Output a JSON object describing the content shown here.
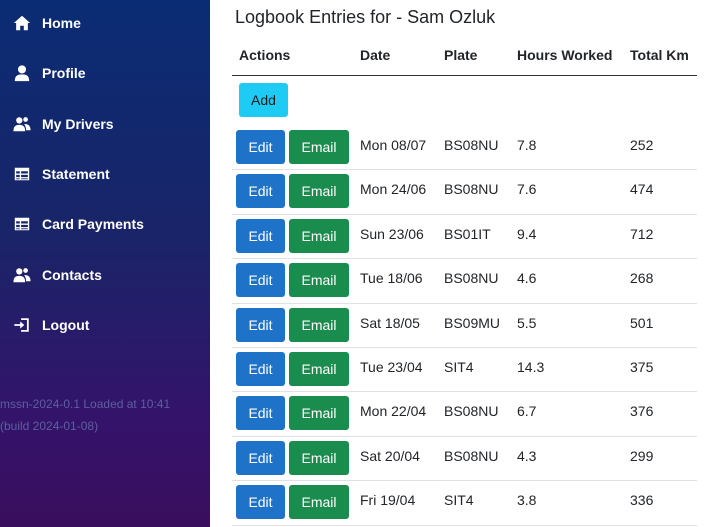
{
  "sidebar": {
    "items": [
      {
        "label": "Home",
        "icon": "home-icon"
      },
      {
        "label": "Profile",
        "icon": "user-icon"
      },
      {
        "label": "My Drivers",
        "icon": "users-icon"
      },
      {
        "label": "Statement",
        "icon": "table-icon"
      },
      {
        "label": "Card Payments",
        "icon": "table-icon"
      },
      {
        "label": "Contacts",
        "icon": "users-icon"
      },
      {
        "label": "Logout",
        "icon": "logout-icon"
      }
    ],
    "footer_line1": "mssn-2024-0.1 Loaded at 10:41",
    "footer_line2": "(build 2024-01-08)"
  },
  "main": {
    "title": "Logbook Entries for - Sam Ozluk",
    "columns": [
      "Actions",
      "Date",
      "Plate",
      "Hours Worked",
      "Total Km"
    ],
    "add_label": "Add",
    "edit_label": "Edit",
    "email_label": "Email",
    "rows": [
      {
        "date": "Mon 08/07",
        "plate": "BS08NU",
        "hours": "7.8",
        "km": "252"
      },
      {
        "date": "Mon 24/06",
        "plate": "BS08NU",
        "hours": "7.6",
        "km": "474"
      },
      {
        "date": "Sun 23/06",
        "plate": "BS01IT",
        "hours": "9.4",
        "km": "712"
      },
      {
        "date": "Tue 18/06",
        "plate": "BS08NU",
        "hours": "4.6",
        "km": "268"
      },
      {
        "date": "Sat 18/05",
        "plate": "BS09MU",
        "hours": "5.5",
        "km": "501"
      },
      {
        "date": "Tue 23/04",
        "plate": "SIT4",
        "hours": "14.3",
        "km": "375"
      },
      {
        "date": "Mon 22/04",
        "plate": "BS08NU",
        "hours": "6.7",
        "km": "376"
      },
      {
        "date": "Sat 20/04",
        "plate": "BS08NU",
        "hours": "4.3",
        "km": "299"
      },
      {
        "date": "Fri 19/04",
        "plate": "SIT4",
        "hours": "3.8",
        "km": "336"
      }
    ]
  },
  "colors": {
    "sidebar_top": "#0a2c74",
    "sidebar_bottom": "#3a0e5e",
    "add_button": "#1ecbf5",
    "edit_button": "#1e73c8",
    "email_button": "#1a8c4e"
  }
}
